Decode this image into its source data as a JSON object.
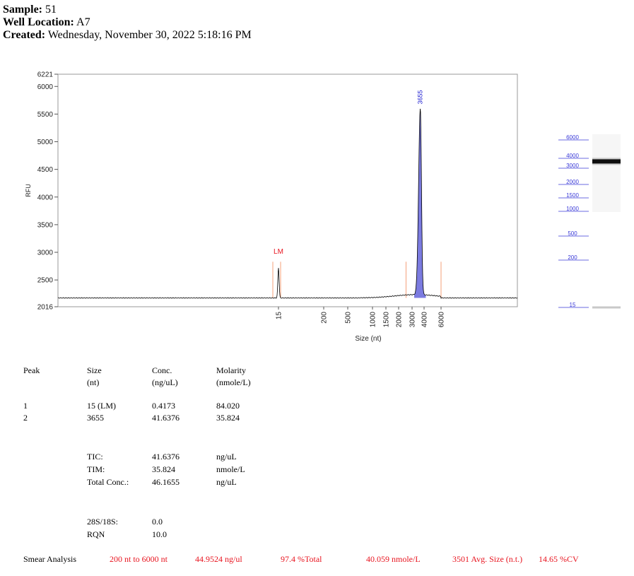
{
  "header": {
    "sample_label": "Sample:",
    "sample_value": "51",
    "well_label": "Well Location:",
    "well_value": "A7",
    "created_label": "Created:",
    "created_value": "Wednesday, November 30, 2022 5:18:16 PM"
  },
  "chart_data": {
    "type": "line",
    "xlabel": "Size (nt)",
    "ylabel": "RFU",
    "ylim": [
      2016,
      6221
    ],
    "y_ticks": [
      2016,
      2500,
      3000,
      3500,
      4000,
      4500,
      5000,
      5500,
      6000,
      6221
    ],
    "x_ticks": [
      "15",
      "200",
      "500",
      "1000",
      "1500",
      "2000",
      "3000",
      "4000",
      "6000"
    ],
    "baseline_rfu": 2175,
    "peaks": [
      {
        "label": "LM",
        "size_nt": 15,
        "height_rfu": 2720,
        "color": "#e8141f"
      },
      {
        "label": "3655",
        "size_nt": 3655,
        "height_rfu": 5550,
        "color": "#1f1fd0"
      }
    ],
    "smear_region_nt": [
      200,
      6000
    ],
    "colors": {
      "trace": "#000000",
      "peak_fill": "#7b7be0",
      "marker": "#f5a07a",
      "ladder": "#3a3ad8"
    }
  },
  "gel": {
    "ladder_labels": [
      "6000",
      "4000",
      "3000",
      "2000",
      "1500",
      "1000",
      "500",
      "200",
      "15"
    ],
    "sample_band_nt": 3655
  },
  "peak_table": {
    "headers": [
      {
        "line1": "Peak",
        "line2": ""
      },
      {
        "line1": "Size",
        "line2": "(nt)"
      },
      {
        "line1": "Conc.",
        "line2": "(ng/uL)"
      },
      {
        "line1": "Molarity",
        "line2": "(nmole/L)"
      }
    ],
    "rows": [
      {
        "peak": "1",
        "size": "15 (LM)",
        "conc": "0.4173",
        "molarity": "84.020"
      },
      {
        "peak": "2",
        "size": "3655",
        "conc": "41.6376",
        "molarity": "35.824"
      }
    ]
  },
  "totals": [
    {
      "label": "TIC:",
      "value": "41.6376",
      "unit": "ng/uL"
    },
    {
      "label": "TIM:",
      "value": "35.824",
      "unit": "nmole/L"
    },
    {
      "label": "Total Conc.:",
      "value": "46.1655",
      "unit": "ng/uL"
    }
  ],
  "ratios": [
    {
      "label": "28S/18S:",
      "value": "0.0"
    },
    {
      "label": "RQN",
      "value": "10.0"
    }
  ],
  "smear": {
    "label": "Smear Analysis",
    "range": "200 nt to 6000 nt",
    "conc": "44.9524 ng/ul",
    "percent_total": "97.4 %Total",
    "molarity": "40.059 nmole/L",
    "avg_size": "3501 Avg. Size (n.t.)",
    "cv": "14.65 %CV"
  }
}
